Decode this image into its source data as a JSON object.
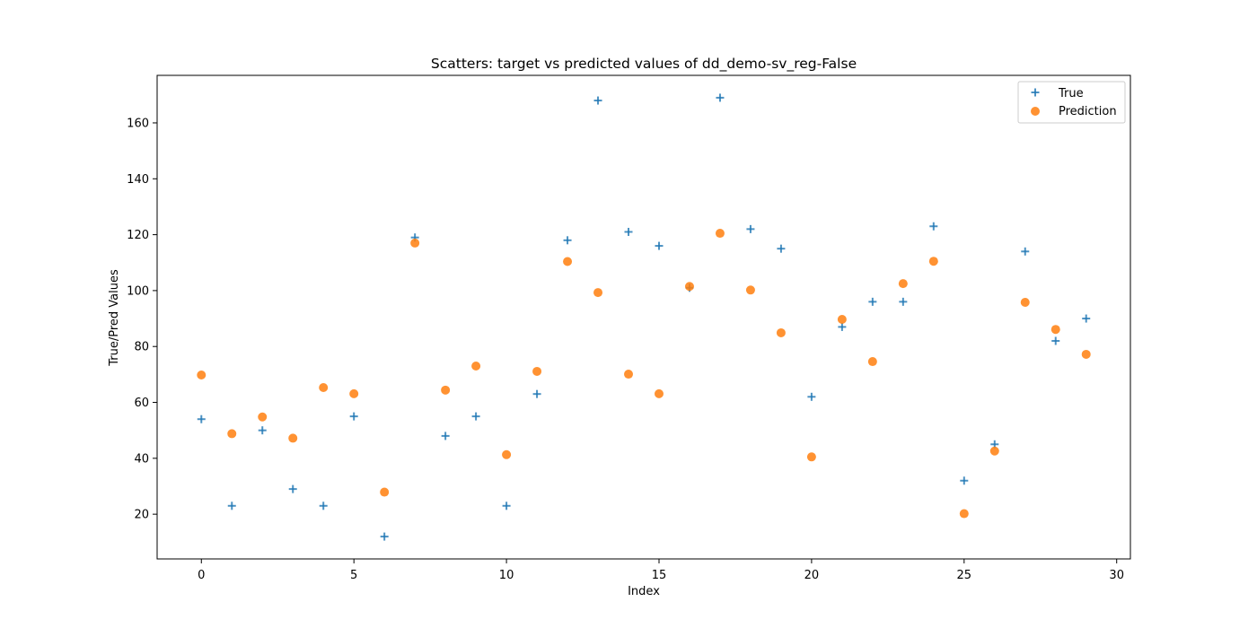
{
  "chart_data": {
    "type": "scatter",
    "title": "Scatters: target vs predicted values of dd_demo-sv_reg-False",
    "xlabel": "Index",
    "ylabel": "True/Pred Values",
    "xlim": [
      -1.45,
      30.45
    ],
    "ylim": [
      4,
      177
    ],
    "xticks": [
      0,
      5,
      10,
      15,
      20,
      25,
      30
    ],
    "yticks": [
      20,
      40,
      60,
      80,
      100,
      120,
      140,
      160
    ],
    "grid": false,
    "legend_position": "top-right",
    "x": [
      0,
      1,
      2,
      3,
      4,
      5,
      6,
      7,
      8,
      9,
      10,
      11,
      12,
      13,
      14,
      15,
      16,
      17,
      18,
      19,
      20,
      21,
      22,
      23,
      24,
      25,
      26,
      27,
      28,
      29
    ],
    "series": [
      {
        "name": "True",
        "marker": "plus",
        "color": "#1f77b4",
        "values": [
          54,
          23,
          50,
          29,
          23,
          55,
          12,
          119,
          48,
          55,
          23,
          63,
          118,
          168,
          121,
          116,
          101,
          169,
          122,
          115,
          62,
          87,
          96,
          96,
          123,
          32,
          45,
          114,
          82,
          90
        ]
      },
      {
        "name": "Prediction",
        "marker": "circle",
        "color": "#ff7f0e",
        "values": [
          69.8,
          48.8,
          54.8,
          47.2,
          65.3,
          63.1,
          27.9,
          117,
          64.4,
          73,
          41.3,
          71.1,
          110.4,
          99.3,
          70.1,
          63.1,
          101.5,
          120.5,
          100.2,
          84.9,
          40.5,
          89.7,
          74.6,
          102.5,
          110.5,
          20.2,
          42.6,
          95.8,
          86.1,
          77.2
        ]
      }
    ]
  }
}
